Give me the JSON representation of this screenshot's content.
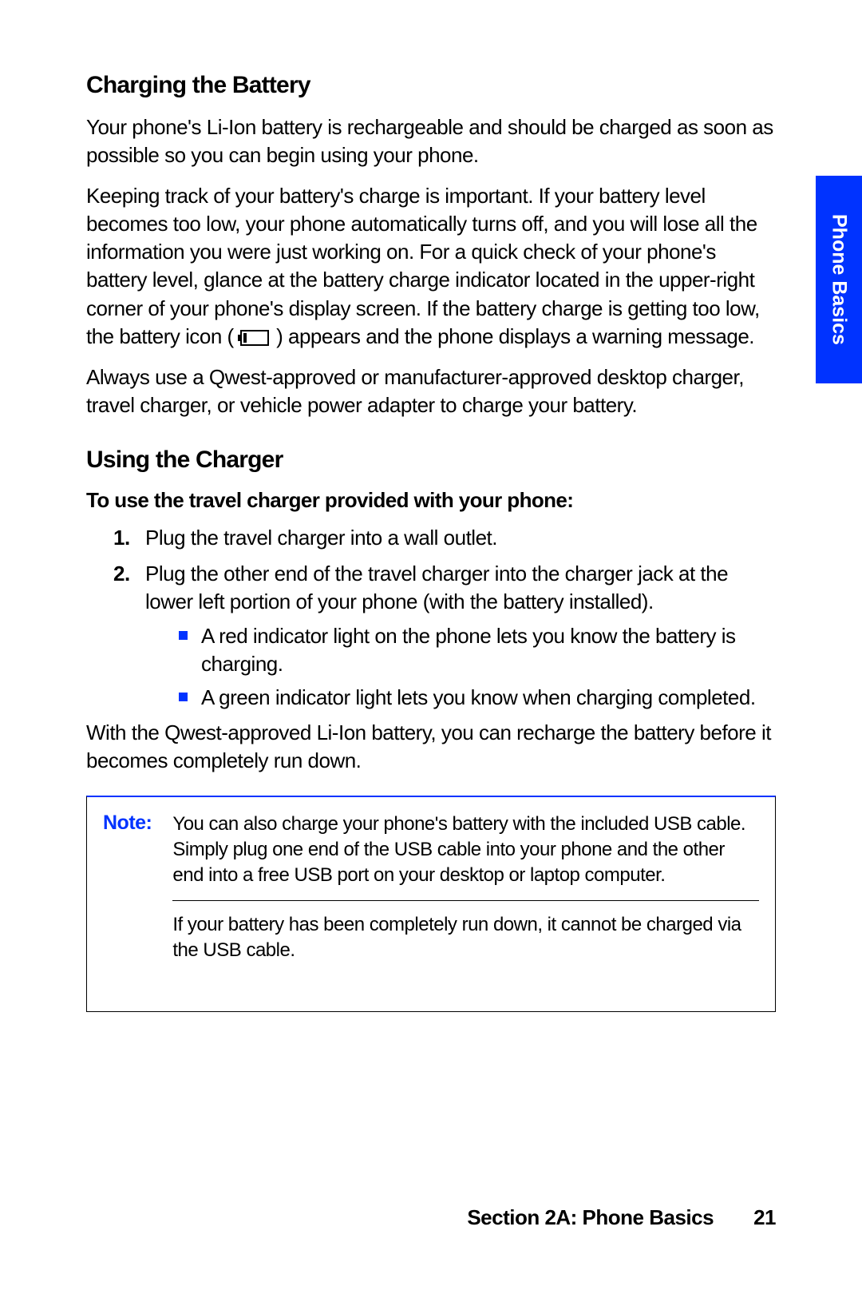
{
  "side_tab": "Phone Basics",
  "colors": {
    "accent": "#0033ff",
    "text": "#000000",
    "background": "#ffffff"
  },
  "section1": {
    "heading": "Charging the Battery",
    "p1": "Your phone's Li-Ion battery is rechargeable and should be charged as soon as possible so you can begin using your phone.",
    "p2a": "Keeping track of your battery's charge is important. If your battery level becomes too low, your phone automatically turns off, and you will lose all the information you were just working on. For a quick check of your phone's battery level, glance at the battery charge indicator located in the upper-right corner of your phone's display screen. If the battery charge is getting too low, the battery icon (",
    "p2b": ") appears and the phone displays a warning message.",
    "p3": "Always use a Qwest-approved or manufacturer-approved desktop charger, travel charger, or vehicle power adapter to charge your battery."
  },
  "section2": {
    "heading": "Using the Charger",
    "sub": "To use the travel charger provided with your phone:",
    "steps": [
      "Plug the travel charger into a wall outlet.",
      "Plug the other end of the travel charger into the charger jack at the lower left portion of your phone (with the battery installed)."
    ],
    "bullets": [
      "A red indicator light on the phone lets you know the battery is charging.",
      "A green indicator light lets you know when charging completed."
    ],
    "after": "With the Qwest-approved Li-Ion battery, you can recharge the battery before it becomes completely run down."
  },
  "note": {
    "label": "Note:",
    "p1": "You can also charge your phone's battery with the included USB cable. Simply plug one end of the USB cable into your phone and the other end into a free USB port on your desktop or laptop computer.",
    "p2": "If your battery has been completely run down, it cannot be charged via the USB cable."
  },
  "footer": {
    "section": "Section 2A: Phone Basics",
    "page": "21"
  }
}
